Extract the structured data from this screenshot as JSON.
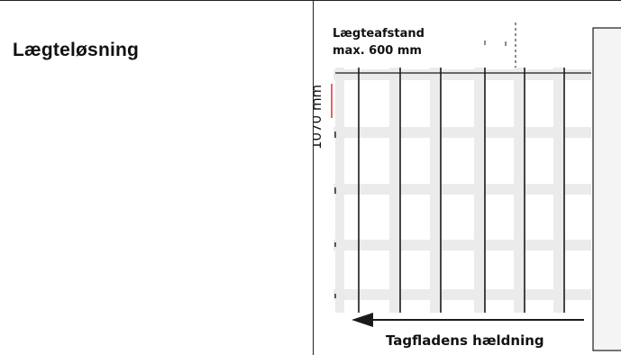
{
  "heading": "Lægteløsning",
  "diagram": {
    "spacing_label_line1": "Lægteafstand",
    "spacing_label_line2": "max. 600 mm",
    "height_label": "1070 mm",
    "slope_label": "Tagfladens hældning"
  },
  "colors": {
    "accent_red": "#e0202a",
    "batten_fill": "#ebebeb",
    "stroke": "#1a1a1a"
  }
}
